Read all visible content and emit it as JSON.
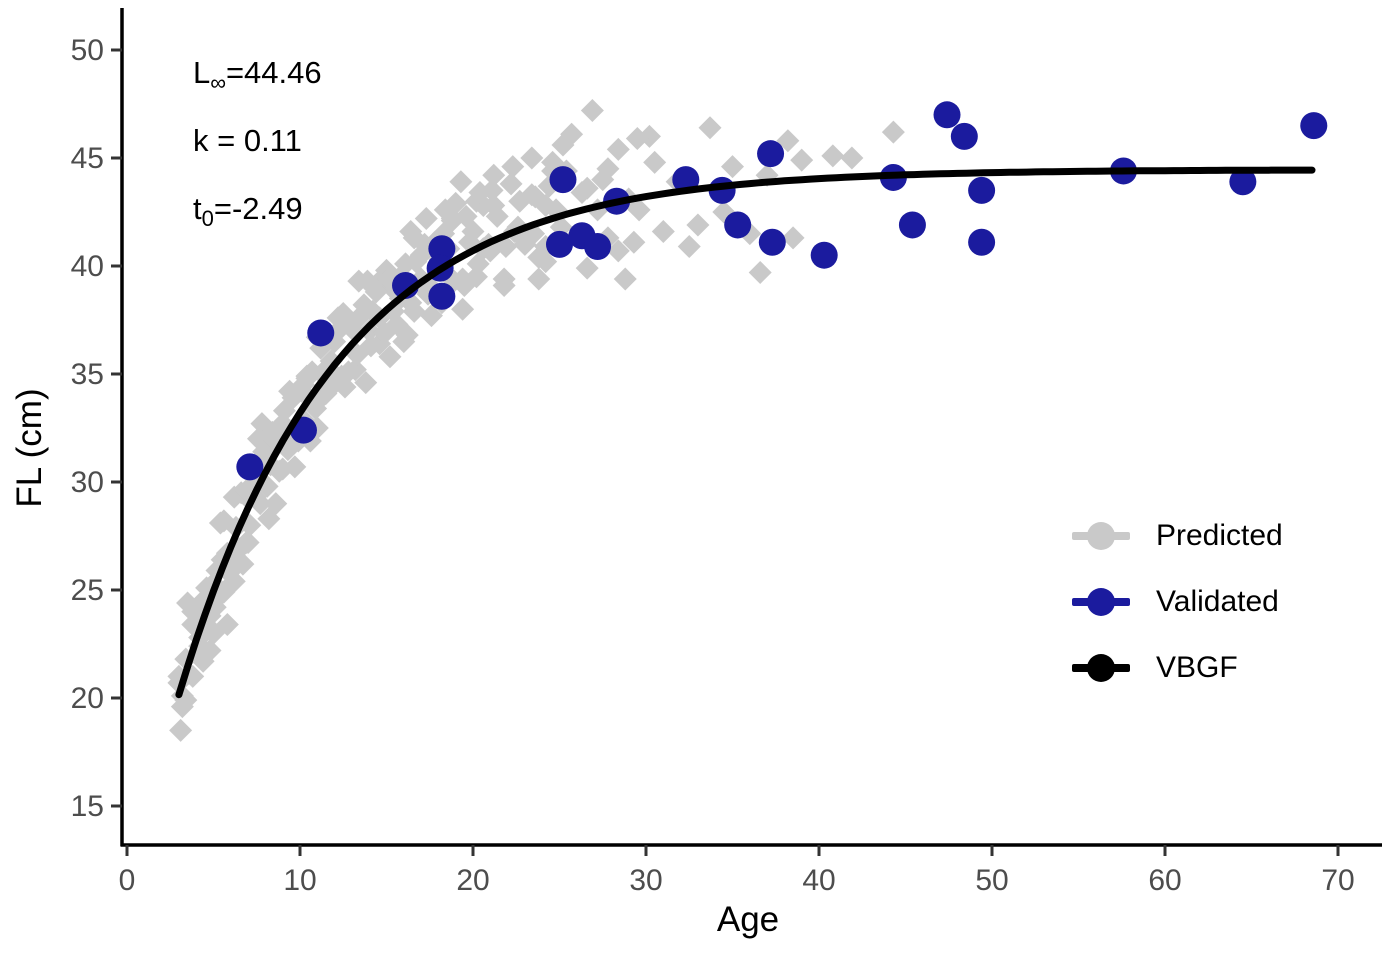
{
  "chart_data": {
    "type": "scatter",
    "title": "",
    "xlabel": "Age",
    "ylabel": "FL (cm)",
    "xlim": [
      0,
      72
    ],
    "ylim": [
      13.5,
      51.5
    ],
    "x_ticks": [
      0,
      10,
      20,
      30,
      40,
      50,
      60,
      70
    ],
    "y_ticks": [
      15,
      20,
      25,
      30,
      35,
      40,
      45,
      50
    ],
    "grid": false,
    "legend_position": "inside-right",
    "annotation_lines": [
      {
        "base": "L",
        "sub": "∞",
        "rest": "=44.46"
      },
      {
        "base": "k",
        "sub": "",
        "rest": " = 0.11"
      },
      {
        "base": "t",
        "sub": "0",
        "rest": "=-2.49"
      }
    ],
    "vbgf_params": {
      "Linf": 44.46,
      "k": 0.11,
      "t0": -2.49,
      "age_range": [
        3,
        68.6
      ]
    },
    "colors": {
      "predicted": "#c9c9c9",
      "validated": "#1b1b9e",
      "vbgf": "#000000",
      "tick_text": "#4d4d4d",
      "axis": "#000000"
    },
    "series": [
      {
        "name": "Predicted",
        "marker": "diamond",
        "points": [
          [
            3.0,
            20.7
          ],
          [
            3.4,
            19.9
          ],
          [
            3.8,
            24.0
          ],
          [
            4.2,
            22.8
          ],
          [
            4.6,
            25.1
          ],
          [
            5.0,
            23.0
          ],
          [
            5.4,
            28.1
          ],
          [
            5.8,
            26.7
          ],
          [
            6.2,
            26.6
          ],
          [
            6.6,
            29.5
          ],
          [
            7.0,
            27.2
          ],
          [
            7.4,
            30.2
          ],
          [
            7.8,
            32.7
          ],
          [
            8.2,
            28.3
          ],
          [
            8.6,
            31.8
          ],
          [
            9.0,
            30.6
          ],
          [
            9.4,
            34.2
          ],
          [
            9.8,
            32.6
          ],
          [
            10.2,
            34.5
          ],
          [
            10.6,
            31.9
          ],
          [
            11.0,
            36.7
          ],
          [
            11.4,
            34.9
          ],
          [
            11.8,
            34.4
          ],
          [
            12.2,
            37.0
          ],
          [
            12.6,
            34.4
          ],
          [
            13.0,
            37.1
          ],
          [
            13.4,
            39.3
          ],
          [
            13.8,
            34.6
          ],
          [
            14.2,
            37.9
          ],
          [
            14.6,
            36.4
          ],
          [
            15.0,
            39.8
          ],
          [
            15.4,
            37.9
          ],
          [
            15.8,
            39.5
          ],
          [
            16.2,
            36.8
          ],
          [
            16.6,
            41.3
          ],
          [
            17.0,
            39.4
          ],
          [
            17.4,
            38.7
          ],
          [
            17.8,
            41.1
          ],
          [
            18.2,
            38.3
          ],
          [
            18.6,
            40.8
          ],
          [
            19.0,
            42.9
          ],
          [
            19.4,
            38.0
          ],
          [
            19.8,
            41.1
          ],
          [
            20.2,
            39.5
          ],
          [
            20.6,
            42.8
          ],
          [
            21.0,
            40.7
          ],
          [
            21.4,
            42.3
          ],
          [
            21.8,
            39.4
          ],
          [
            22.2,
            43.8
          ],
          [
            22.6,
            41.8
          ],
          [
            23.0,
            41.0
          ],
          [
            23.4,
            43.3
          ],
          [
            23.8,
            40.4
          ],
          [
            24.2,
            42.8
          ],
          [
            24.6,
            44.8
          ],
          [
            3.2,
            20.1
          ],
          [
            3.8,
            23.4
          ],
          [
            4.4,
            21.7
          ],
          [
            5.0,
            25.3
          ],
          [
            5.6,
            28.2
          ],
          [
            6.2,
            26.3
          ],
          [
            6.8,
            29.4
          ],
          [
            7.4,
            29.3
          ],
          [
            8.0,
            32.0
          ],
          [
            8.6,
            29.0
          ],
          [
            9.2,
            32.2
          ],
          [
            9.8,
            32.4
          ],
          [
            10.4,
            34.9
          ],
          [
            11.0,
            32.5
          ],
          [
            11.6,
            35.3
          ],
          [
            12.2,
            37.6
          ],
          [
            12.8,
            35.1
          ],
          [
            13.4,
            37.6
          ],
          [
            14.0,
            37.0
          ],
          [
            14.6,
            39.3
          ],
          [
            15.2,
            35.8
          ],
          [
            15.8,
            38.5
          ],
          [
            16.4,
            38.3
          ],
          [
            17.0,
            40.5
          ],
          [
            17.6,
            37.7
          ],
          [
            18.2,
            40.2
          ],
          [
            18.8,
            42.2
          ],
          [
            19.4,
            39.4
          ],
          [
            20.0,
            41.6
          ],
          [
            20.6,
            40.8
          ],
          [
            21.2,
            42.8
          ],
          [
            21.8,
            39.1
          ],
          [
            22.4,
            41.6
          ],
          [
            23.0,
            41.2
          ],
          [
            23.6,
            43.2
          ],
          [
            24.2,
            40.2
          ],
          [
            24.8,
            42.6
          ],
          [
            25.4,
            44.4
          ],
          [
            26.0,
            41.4
          ],
          [
            26.6,
            43.6
          ],
          [
            27.2,
            42.6
          ],
          [
            27.8,
            44.5
          ],
          [
            28.4,
            40.7
          ],
          [
            29.0,
            43.1
          ],
          [
            29.6,
            42.6
          ],
          [
            4.1,
            24.0
          ],
          [
            4.8,
            23.8
          ],
          [
            5.5,
            26.4
          ],
          [
            6.2,
            29.3
          ],
          [
            6.9,
            27.2
          ],
          [
            7.6,
            32.0
          ],
          [
            8.3,
            30.8
          ],
          [
            9.0,
            32.7
          ],
          [
            9.7,
            30.7
          ],
          [
            10.4,
            34.8
          ],
          [
            11.1,
            33.8
          ],
          [
            11.8,
            35.6
          ],
          [
            12.5,
            37.8
          ],
          [
            13.2,
            35.2
          ],
          [
            13.9,
            39.3
          ],
          [
            14.6,
            37.6
          ],
          [
            15.3,
            39.0
          ],
          [
            16.0,
            36.5
          ],
          [
            16.7,
            40.2
          ],
          [
            17.4,
            38.8
          ],
          [
            18.1,
            40.3
          ],
          [
            18.8,
            42.1
          ],
          [
            19.5,
            39.1
          ],
          [
            20.2,
            43.0
          ],
          [
            20.9,
            41.0
          ],
          [
            26.9,
            47.2
          ],
          [
            25.7,
            46.1
          ],
          [
            30.2,
            46.0
          ],
          [
            33.7,
            46.4
          ],
          [
            38.2,
            45.8
          ],
          [
            40.8,
            45.1
          ],
          [
            41.9,
            45.0
          ],
          [
            44.3,
            46.2
          ],
          [
            31.0,
            41.6
          ],
          [
            33.0,
            41.9
          ],
          [
            35.0,
            44.6
          ],
          [
            36.0,
            41.5
          ],
          [
            37.0,
            44.2
          ],
          [
            39.0,
            44.9
          ],
          [
            30.5,
            44.8
          ],
          [
            29.5,
            45.9
          ],
          [
            28.4,
            45.4
          ],
          [
            27.5,
            44.0
          ],
          [
            26.3,
            43.4
          ],
          [
            25.2,
            45.6
          ],
          [
            24.6,
            44.4
          ],
          [
            23.4,
            45.0
          ],
          [
            22.3,
            44.6
          ],
          [
            21.2,
            44.2
          ],
          [
            20.4,
            43.4
          ],
          [
            19.3,
            43.9
          ],
          [
            18.4,
            42.6
          ],
          [
            17.3,
            42.2
          ],
          [
            16.4,
            41.6
          ],
          [
            32.5,
            40.9
          ],
          [
            34.5,
            42.5
          ],
          [
            36.6,
            39.7
          ],
          [
            38.5,
            41.3
          ],
          [
            23.8,
            39.4
          ],
          [
            26.6,
            39.9
          ],
          [
            28.8,
            39.4
          ],
          [
            29.3,
            41.1
          ],
          [
            31.8,
            43.9
          ],
          [
            24.2,
            40.9
          ],
          [
            27.8,
            41.3
          ],
          [
            4.3,
            21.9
          ],
          [
            4.7,
            23.3
          ],
          [
            5.1,
            24.2
          ],
          [
            5.2,
            25.9
          ],
          [
            5.6,
            24.9
          ],
          [
            5.9,
            25.8
          ],
          [
            6.3,
            27.9
          ],
          [
            6.5,
            26.9
          ],
          [
            6.9,
            29.6
          ],
          [
            7.1,
            28.0
          ],
          [
            7.3,
            30.7
          ],
          [
            7.7,
            29.0
          ],
          [
            7.9,
            31.4
          ],
          [
            8.1,
            29.8
          ],
          [
            8.4,
            32.3
          ],
          [
            8.8,
            30.5
          ],
          [
            9.1,
            33.3
          ],
          [
            9.3,
            31.5
          ],
          [
            9.6,
            33.9
          ],
          [
            9.9,
            31.9
          ],
          [
            10.1,
            34.2
          ],
          [
            10.3,
            32.8
          ],
          [
            10.7,
            35.1
          ],
          [
            10.9,
            33.4
          ],
          [
            11.2,
            36.2
          ],
          [
            11.5,
            34.1
          ],
          [
            12.0,
            36.5
          ],
          [
            12.4,
            34.9
          ],
          [
            12.9,
            37.3
          ],
          [
            13.3,
            35.9
          ],
          [
            13.7,
            38.2
          ],
          [
            14.1,
            36.3
          ],
          [
            14.4,
            38.8
          ],
          [
            14.9,
            36.9
          ],
          [
            15.1,
            39.4
          ],
          [
            15.6,
            37.3
          ],
          [
            16.1,
            40.1
          ],
          [
            16.6,
            37.9
          ],
          [
            17.2,
            41.0
          ],
          [
            17.7,
            38.9
          ],
          [
            18.3,
            41.5
          ],
          [
            18.9,
            39.3
          ],
          [
            19.6,
            42.3
          ],
          [
            20.3,
            40.1
          ],
          [
            21.1,
            43.5
          ],
          [
            21.9,
            40.9
          ],
          [
            22.7,
            43.0
          ],
          [
            23.5,
            41.5
          ],
          [
            24.4,
            43.7
          ],
          [
            25.1,
            41.8
          ],
          [
            3.1,
            18.5
          ],
          [
            3.2,
            19.6
          ],
          [
            3.0,
            21.0
          ],
          [
            3.8,
            21.0
          ],
          [
            3.4,
            21.8
          ],
          [
            4.2,
            22.4
          ],
          [
            4.8,
            22.2
          ],
          [
            3.5,
            24.4
          ],
          [
            4.4,
            24.5
          ],
          [
            5.8,
            23.4
          ],
          [
            5.3,
            24.7
          ],
          [
            6.2,
            25.4
          ],
          [
            6.7,
            26.2
          ],
          [
            6.1,
            26.4
          ]
        ]
      },
      {
        "name": "Validated",
        "marker": "circle",
        "points": [
          [
            7.1,
            30.7
          ],
          [
            10.2,
            32.4
          ],
          [
            11.2,
            36.9
          ],
          [
            16.1,
            39.1
          ],
          [
            18.2,
            40.8
          ],
          [
            18.1,
            39.9
          ],
          [
            18.2,
            38.6
          ],
          [
            25.2,
            44.0
          ],
          [
            25.0,
            41.0
          ],
          [
            26.3,
            41.4
          ],
          [
            27.2,
            40.9
          ],
          [
            28.3,
            43.0
          ],
          [
            32.3,
            44.0
          ],
          [
            34.4,
            43.5
          ],
          [
            35.3,
            41.9
          ],
          [
            37.2,
            45.2
          ],
          [
            37.3,
            41.1
          ],
          [
            40.3,
            40.5
          ],
          [
            44.3,
            44.1
          ],
          [
            45.4,
            41.9
          ],
          [
            47.4,
            47.0
          ],
          [
            48.4,
            46.0
          ],
          [
            49.4,
            43.5
          ],
          [
            49.4,
            41.1
          ],
          [
            57.6,
            44.4
          ],
          [
            64.5,
            43.9
          ],
          [
            68.6,
            46.5
          ]
        ]
      },
      {
        "name": "VBGF",
        "marker": "line",
        "points": []
      }
    ]
  }
}
